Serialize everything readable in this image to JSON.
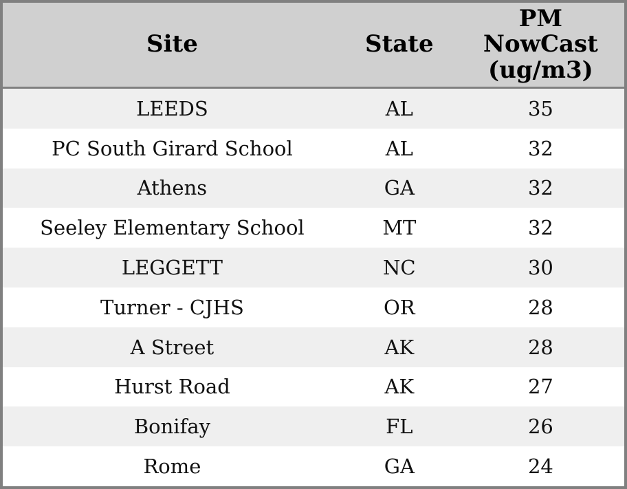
{
  "chart_data": {
    "type": "table",
    "title": "",
    "columns": [
      "Site",
      "State",
      "PM NowCast (ug/m3)"
    ],
    "rows": [
      [
        "LEEDS",
        "AL",
        35
      ],
      [
        "PC South Girard School",
        "AL",
        32
      ],
      [
        "Athens",
        "GA",
        32
      ],
      [
        "Seeley Elementary School",
        "MT",
        32
      ],
      [
        "LEGGETT",
        "NC",
        30
      ],
      [
        "Turner - CJHS",
        "OR",
        28
      ],
      [
        "A Street",
        "AK",
        28
      ],
      [
        "Hurst Road",
        "AK",
        27
      ],
      [
        "Bonifay",
        "FL",
        26
      ],
      [
        "Rome",
        "GA",
        24
      ]
    ],
    "layout": {
      "header_position": "top",
      "zebra_striping": true,
      "text_alignment": "center"
    }
  },
  "colors": {
    "header_bg": "#d0d0d0",
    "row_alt_bg": "#efefef",
    "row_bg": "#ffffff",
    "border": "#808080",
    "header_text": "#000000",
    "body_text": "#111111"
  }
}
